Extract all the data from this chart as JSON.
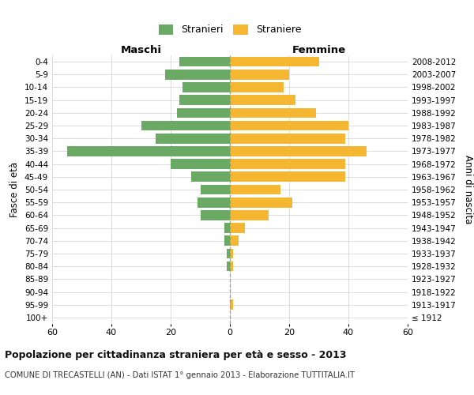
{
  "age_groups": [
    "100+",
    "95-99",
    "90-94",
    "85-89",
    "80-84",
    "75-79",
    "70-74",
    "65-69",
    "60-64",
    "55-59",
    "50-54",
    "45-49",
    "40-44",
    "35-39",
    "30-34",
    "25-29",
    "20-24",
    "15-19",
    "10-14",
    "5-9",
    "0-4"
  ],
  "birth_years": [
    "≤ 1912",
    "1913-1917",
    "1918-1922",
    "1923-1927",
    "1928-1932",
    "1933-1937",
    "1938-1942",
    "1943-1947",
    "1948-1952",
    "1953-1957",
    "1958-1962",
    "1963-1967",
    "1968-1972",
    "1973-1977",
    "1978-1982",
    "1983-1987",
    "1988-1992",
    "1993-1997",
    "1998-2002",
    "2003-2007",
    "2008-2012"
  ],
  "maschi": [
    0,
    0,
    0,
    0,
    1,
    1,
    2,
    2,
    10,
    11,
    10,
    13,
    20,
    55,
    25,
    30,
    18,
    17,
    16,
    22,
    17
  ],
  "femmine": [
    0,
    1,
    0,
    0,
    1,
    1,
    3,
    5,
    13,
    21,
    17,
    39,
    39,
    46,
    39,
    40,
    29,
    22,
    18,
    20,
    30
  ],
  "color_maschi": "#6aaa64",
  "color_femmine": "#f5b731",
  "title": "Popolazione per cittadinanza straniera per età e sesso - 2013",
  "subtitle": "COMUNE DI TRECASTELLI (AN) - Dati ISTAT 1° gennaio 2013 - Elaborazione TUTTITALIA.IT",
  "xlabel_left": "Maschi",
  "xlabel_right": "Femmine",
  "ylabel_left": "Fasce di età",
  "ylabel_right": "Anni di nascita",
  "legend_maschi": "Stranieri",
  "legend_femmine": "Straniere",
  "xlim": 60,
  "background_color": "#ffffff",
  "grid_color": "#d0d0d0"
}
